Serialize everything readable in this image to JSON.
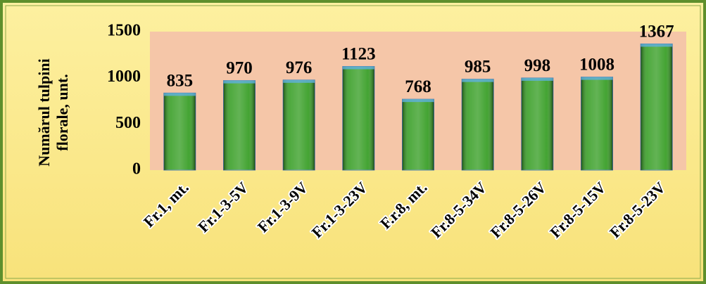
{
  "chart_data": {
    "type": "bar",
    "y_label": [
      "Numărul  tulpini",
      "florale, unt."
    ],
    "categories": [
      "Fr.1, mt.",
      "Fr.1-3-5V",
      "Fr.1-3-9V",
      "Fr.1-3-23V",
      "F.r.8, mt.",
      "Fr.8-5-34V",
      "Fr.8-5-26V",
      "Fr.8-5-15V",
      "Fr.8-5-23V"
    ],
    "values": [
      835,
      970,
      976,
      1123,
      768,
      985,
      998,
      1008,
      1367
    ],
    "color": "#2f9a1c",
    "ylim": [
      0,
      1500
    ],
    "yticks": [
      0,
      500,
      1000,
      1500
    ],
    "grid": false
  }
}
